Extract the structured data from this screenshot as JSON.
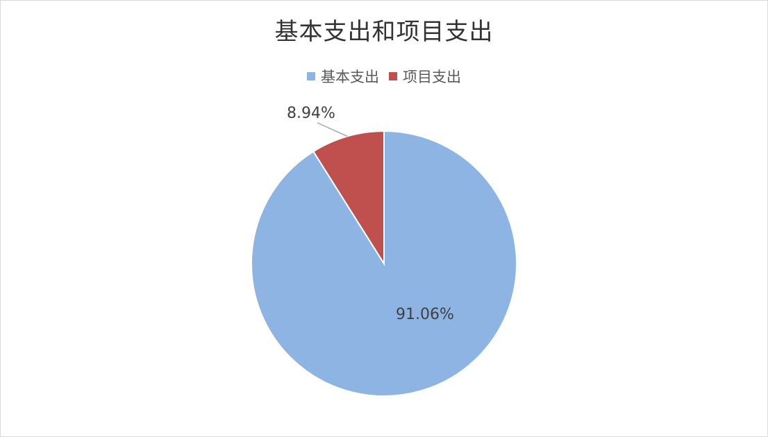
{
  "chart_data": {
    "type": "pie",
    "title": "基本支出和项目支出",
    "legend_position": "top",
    "categories": [
      "基本支出",
      "项目支出"
    ],
    "values": [
      91.06,
      8.94
    ],
    "labels": [
      "91.06%",
      "8.94%"
    ],
    "colors": [
      "#8EB4E3",
      "#C0504D"
    ],
    "start_angle_deg": 0,
    "direction": "counterclockwise"
  }
}
